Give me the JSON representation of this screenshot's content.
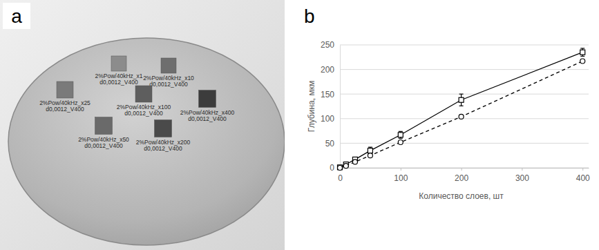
{
  "panel_a": {
    "label": "a",
    "samples": [
      {
        "line1": "2%Pow/40kHz_x1",
        "line2": "d0,0012_V400"
      },
      {
        "line1": "2%Pow/40kHz_x10",
        "line2": "d0,0012_V400"
      },
      {
        "line1": "2%Pow/40kHz_x25",
        "line2": "d0,0012_V400"
      },
      {
        "line1": "2%Pow/40kHz_x100",
        "line2": "d0,0012_V400"
      },
      {
        "line1": "2%Pow/40kHz_x400",
        "line2": "d0,0012_V400"
      },
      {
        "line1": "2%Pow/40kHz_x50",
        "line2": "d0,0012_V400"
      },
      {
        "line1": "2%Pow/40kHz_x200",
        "line2": "d0,0012_V400"
      }
    ]
  },
  "panel_b": {
    "label": "b"
  },
  "chart_data": {
    "type": "line",
    "x_label": "Количество слоев, шт",
    "y_label": "Глубина, мкм",
    "x": [
      0,
      10,
      25,
      50,
      100,
      200,
      400
    ],
    "series": [
      {
        "color": "#000000",
        "marker": "square",
        "line_style": "solid",
        "values": [
          1,
          7,
          17,
          35,
          67,
          138,
          235
        ],
        "error": [
          2,
          3,
          4,
          7,
          7,
          12,
          8
        ]
      },
      {
        "color": "#000000",
        "marker": "circle",
        "line_style": "dashed",
        "values": [
          0,
          4,
          12,
          25,
          52,
          104,
          217
        ]
      }
    ],
    "xlim": [
      0,
      410
    ],
    "xticks": [
      0,
      100,
      200,
      300,
      400
    ],
    "ylim": [
      0,
      250
    ],
    "yticks": [
      0,
      50,
      100,
      150,
      200,
      250
    ],
    "grid": true
  }
}
